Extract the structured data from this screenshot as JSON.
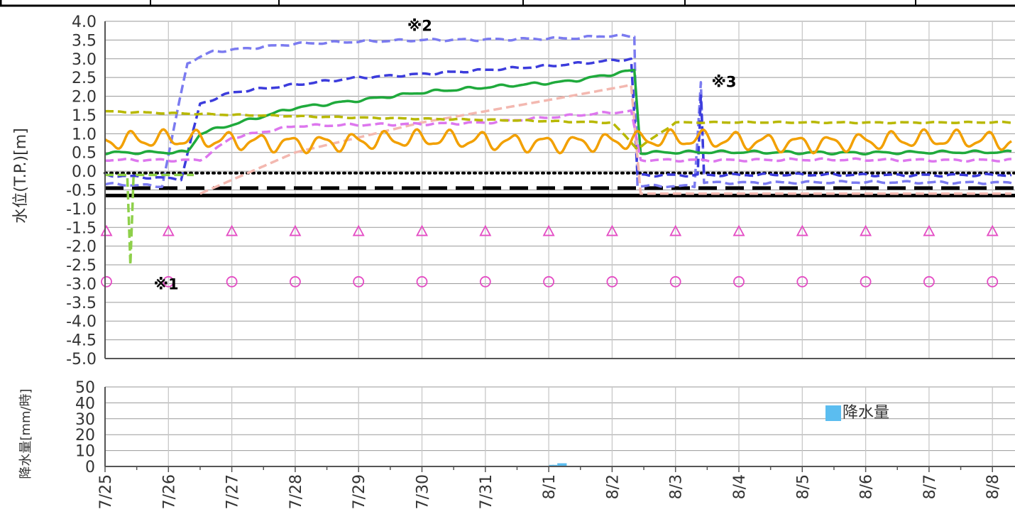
{
  "chart_data": [
    {
      "type": "line",
      "ylabel": "水位(T.P.)[m]",
      "ylim": [
        -5.0,
        4.0
      ],
      "y_ticks": [
        "4.0",
        "3.5",
        "3.0",
        "2.5",
        "2.0",
        "1.5",
        "1.0",
        "0.5",
        "0.0",
        "-0.5",
        "-1.0",
        "-1.5",
        "-2.0",
        "-2.5",
        "-3.0",
        "-3.5",
        "-4.0",
        "-4.5",
        "-5.0"
      ],
      "x_categories": [
        "7/25",
        "7/26",
        "7/27",
        "7/28",
        "7/29",
        "7/30",
        "7/31",
        "8/1",
        "8/2",
        "8/3",
        "8/4",
        "8/5",
        "8/6",
        "8/7",
        "8/8"
      ],
      "grid": true,
      "reference_lines": [
        {
          "style": "dotted",
          "color": "#000000",
          "y": -0.05
        },
        {
          "style": "dashed",
          "color": "#000000",
          "y": -0.45
        },
        {
          "style": "solid",
          "color": "#000000",
          "y": -0.65
        }
      ],
      "markers": [
        {
          "shape": "triangle",
          "color": "#e44cc4",
          "y": -1.6
        },
        {
          "shape": "circle",
          "color": "#e44cc4",
          "y": -2.95
        }
      ],
      "annotations": [
        {
          "text": "※1",
          "x": 0.5,
          "y": -3.0
        },
        {
          "text": "※2",
          "x": 4.5,
          "y": 3.9
        },
        {
          "text": "※3",
          "x": 9.3,
          "y": 2.4
        }
      ],
      "series": [
        {
          "color": "#7b7bf0",
          "style": "dashed",
          "points": [
            [
              0,
              -0.35
            ],
            [
              0.9,
              -0.4
            ],
            [
              1.3,
              2.9
            ],
            [
              1.7,
              3.2
            ],
            [
              3,
              3.4
            ],
            [
              5,
              3.5
            ],
            [
              7.5,
              3.55
            ],
            [
              7.8,
              3.6
            ],
            [
              8.35,
              3.6
            ],
            [
              8.4,
              -0.4
            ],
            [
              9.3,
              -0.4
            ],
            [
              9.4,
              2.4
            ],
            [
              9.45,
              -0.3
            ],
            [
              14.3,
              -0.3
            ]
          ]
        },
        {
          "color": "#3c3cdc",
          "style": "dashed",
          "points": [
            [
              0,
              -0.1
            ],
            [
              1.2,
              -0.2
            ],
            [
              1.5,
              1.8
            ],
            [
              2,
              2.1
            ],
            [
              4,
              2.5
            ],
            [
              7,
              2.8
            ],
            [
              8.3,
              3.0
            ],
            [
              8.4,
              -0.1
            ],
            [
              9.35,
              -0.1
            ],
            [
              9.4,
              2.0
            ],
            [
              9.45,
              -0.1
            ],
            [
              14.3,
              -0.1
            ]
          ]
        },
        {
          "color": "#1faa3c",
          "style": "solid",
          "points": [
            [
              0,
              0.5
            ],
            [
              1.3,
              0.5
            ],
            [
              1.5,
              1.0
            ],
            [
              3,
              1.7
            ],
            [
              5,
              2.1
            ],
            [
              7.3,
              2.4
            ],
            [
              8.35,
              2.7
            ],
            [
              8.45,
              0.5
            ],
            [
              14.3,
              0.5
            ]
          ]
        },
        {
          "color": "#f3b8b0",
          "style": "dashed",
          "points": [
            [
              1.5,
              -0.6
            ],
            [
              3,
              0.5
            ],
            [
              5,
              1.3
            ],
            [
              7,
              1.9
            ],
            [
              8.3,
              2.3
            ],
            [
              8.45,
              -0.6
            ],
            [
              14.3,
              -0.6
            ]
          ]
        },
        {
          "color": "#dd77ee",
          "style": "dashed",
          "points": [
            [
              0,
              0.3
            ],
            [
              1.5,
              0.3
            ],
            [
              2,
              0.9
            ],
            [
              3,
              1.2
            ],
            [
              6,
              1.3
            ],
            [
              8.3,
              1.6
            ],
            [
              8.45,
              0.3
            ],
            [
              14.3,
              0.3
            ]
          ]
        },
        {
          "color": "#b8b800",
          "style": "dashed",
          "points": [
            [
              0,
              1.6
            ],
            [
              2,
              1.5
            ],
            [
              5,
              1.4
            ],
            [
              8,
              1.3
            ],
            [
              8.4,
              0.6
            ],
            [
              9,
              1.3
            ],
            [
              14.3,
              1.3
            ]
          ]
        },
        {
          "color": "#f2a000",
          "style": "solid",
          "points": [
            [
              0,
              0.8
            ],
            [
              14.3,
              0.8
            ]
          ]
        },
        {
          "color": "#8ed04a",
          "style": "dashed",
          "points": [
            [
              0,
              -0.1
            ],
            [
              0.35,
              -0.1
            ],
            [
              0.4,
              -2.5
            ],
            [
              0.45,
              -0.1
            ],
            [
              1.4,
              -0.1
            ]
          ]
        }
      ]
    },
    {
      "type": "bar",
      "ylabel": "降水量[mm/時]",
      "ylim": [
        0,
        50
      ],
      "y_ticks": [
        "50",
        "40",
        "30",
        "20",
        "10",
        "0"
      ],
      "x_categories": [
        "7/25",
        "7/26",
        "7/27",
        "7/28",
        "7/29",
        "7/30",
        "7/31",
        "8/1",
        "8/2",
        "8/3",
        "8/4",
        "8/5",
        "8/6",
        "8/7",
        "8/8"
      ],
      "series": [
        {
          "name": "降水量",
          "color": "#5bbdf0",
          "points": [
            [
              7.05,
              1
            ],
            [
              7.1,
              1
            ],
            [
              7.18,
              2
            ],
            [
              7.25,
              2
            ]
          ]
        }
      ],
      "legend": "right"
    }
  ]
}
